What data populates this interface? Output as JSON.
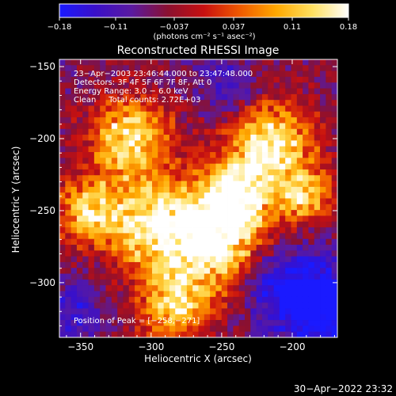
{
  "chart_data": {
    "type": "heatmap",
    "title": "Reconstructed RHESSI Image",
    "xlabel": "Heliocentric X (arcsec)",
    "ylabel": "Heliocentric Y (arcsec)",
    "xlim": [
      -365,
      -168
    ],
    "ylim": [
      -338,
      -145
    ],
    "x_ticks": [
      -350,
      -300,
      -250,
      -200
    ],
    "y_ticks": [
      -150,
      -200,
      -250,
      -300
    ],
    "x_tick_labels": [
      "−350",
      "−300",
      "−250",
      "−200"
    ],
    "y_tick_labels": [
      "−150",
      "−200",
      "−250",
      "−300"
    ],
    "colorbar": {
      "min": -0.18,
      "max": 0.18,
      "ticks": [
        -0.18,
        -0.11,
        -0.037,
        0.037,
        0.11,
        0.18
      ],
      "tick_labels": [
        "−0.18",
        "−0.11",
        "−0.037",
        "0.037",
        "0.11",
        "0.18"
      ],
      "units_label": "(photons cm⁻² s⁻¹ asec⁻²)",
      "colormap_stops": [
        "#1a1aff",
        "#3a10c8",
        "#5a1aa0",
        "#8a1030",
        "#c81010",
        "#f05a00",
        "#ffa800",
        "#ffe060",
        "#ffffff"
      ]
    },
    "peak": [
      -258,
      -271
    ],
    "hot_regions": [
      {
        "x": -258,
        "y": -271,
        "radius": 35,
        "value": 0.18
      },
      {
        "x": -215,
        "y": -205,
        "radius": 30,
        "value": 0.17
      },
      {
        "x": -315,
        "y": -200,
        "radius": 28,
        "value": 0.15
      },
      {
        "x": -300,
        "y": -260,
        "radius": 30,
        "value": 0.15
      },
      {
        "x": -345,
        "y": -250,
        "radius": 22,
        "value": 0.13
      },
      {
        "x": -285,
        "y": -318,
        "radius": 25,
        "value": 0.12
      },
      {
        "x": -240,
        "y": -240,
        "radius": 25,
        "value": 0.14
      },
      {
        "x": -190,
        "y": -240,
        "radius": 18,
        "value": 0.11
      }
    ],
    "cold_regions": [
      {
        "x": -178,
        "y": -318,
        "radius": 32,
        "value": -0.17
      },
      {
        "x": -210,
        "y": -300,
        "radius": 25,
        "value": -0.12
      },
      {
        "x": -245,
        "y": -165,
        "radius": 20,
        "value": -0.1
      },
      {
        "x": -355,
        "y": -320,
        "radius": 20,
        "value": -0.1
      }
    ],
    "annotations": [
      "23−Apr−2003 23:46:44.000 to 23:47:48.000",
      "Detectors: 3F 4F 5F 6F 7F 8F, Att 0",
      "Energy Range: 3.0 − 6.0 keV",
      "Clean     Total counts: 2.72E+03"
    ],
    "peak_label": "Position of Peak = [−258,−271]"
  },
  "footer": {
    "timestamp": "30−Apr−2022 23:32"
  }
}
